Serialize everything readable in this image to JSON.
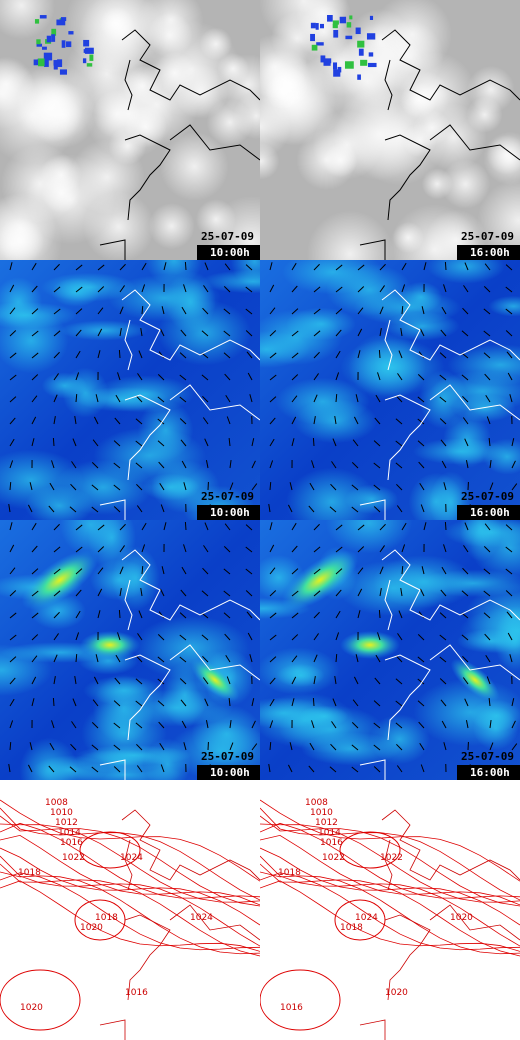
{
  "panels": [
    {
      "date": "25-07-09",
      "time": "10:00h"
    },
    {
      "date": "25-07-09",
      "time": "16:00h"
    },
    {
      "date": "25-07-09",
      "time": "10:00h"
    },
    {
      "date": "25-07-09",
      "time": "16:00h"
    },
    {
      "date": "25-07-09",
      "time": "10:00h"
    },
    {
      "date": "25-07-09",
      "time": "16:00h"
    }
  ],
  "isobar_maps": [
    {
      "labels": [
        "1008",
        "1010",
        "1012",
        "1014",
        "1016",
        "1018",
        "1022",
        "1024",
        "1018",
        "1020",
        "1016",
        "1020",
        "1024"
      ]
    },
    {
      "labels": [
        "1008",
        "1010",
        "1012",
        "1014",
        "1016",
        "1018",
        "1022",
        "1022",
        "1024",
        "1018",
        "1020",
        "1016",
        "1020"
      ]
    }
  ]
}
